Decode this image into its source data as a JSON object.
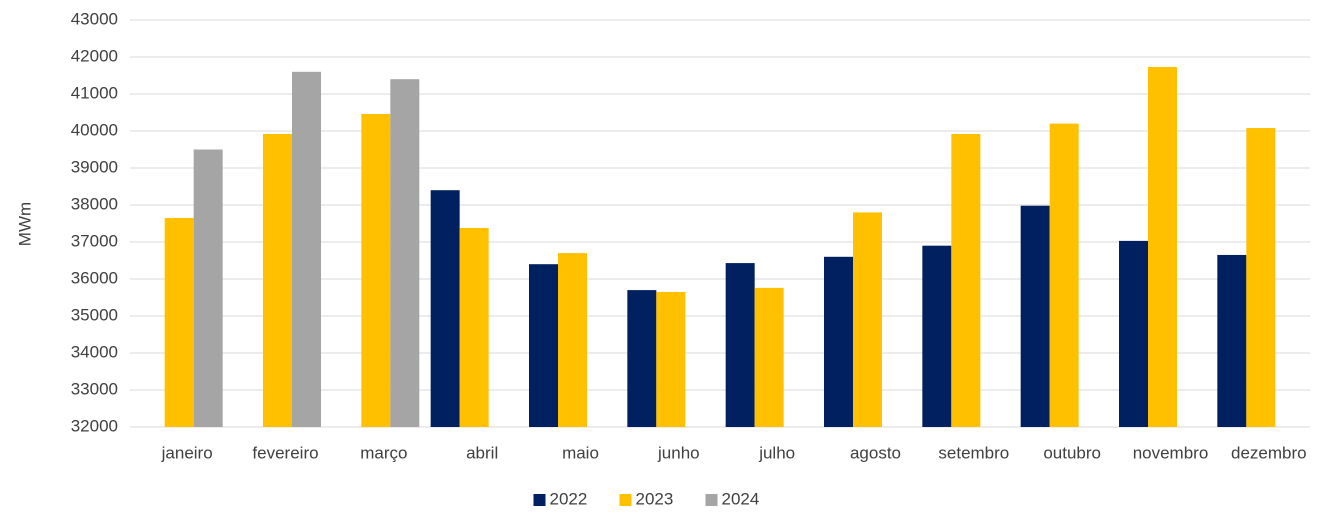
{
  "chart_data": {
    "type": "bar",
    "y_label": "MWm",
    "categories": [
      "janeiro",
      "fevereiro",
      "março",
      "abril",
      "maio",
      "junho",
      "julho",
      "agosto",
      "setembro",
      "outubro",
      "novembro",
      "dezembro"
    ],
    "series": [
      {
        "name": "2022",
        "color": "#002060",
        "values": [
          null,
          null,
          null,
          38400,
          36400,
          35700,
          36430,
          36600,
          36900,
          37980,
          37030,
          36650
        ]
      },
      {
        "name": "2023",
        "color": "#FFC000",
        "values": [
          37650,
          39920,
          40460,
          37380,
          36700,
          35650,
          35760,
          37800,
          39920,
          40200,
          41730,
          40080
        ]
      },
      {
        "name": "2024",
        "color": "#A5A5A5",
        "values": [
          39500,
          41600,
          41400,
          null,
          null,
          null,
          null,
          null,
          null,
          null,
          null,
          null
        ]
      }
    ],
    "ylim": [
      32000,
      43000
    ],
    "yticks": [
      32000,
      33000,
      34000,
      35000,
      36000,
      37000,
      38000,
      39000,
      40000,
      41000,
      42000,
      43000
    ],
    "grid": true,
    "legend": "bottom"
  }
}
